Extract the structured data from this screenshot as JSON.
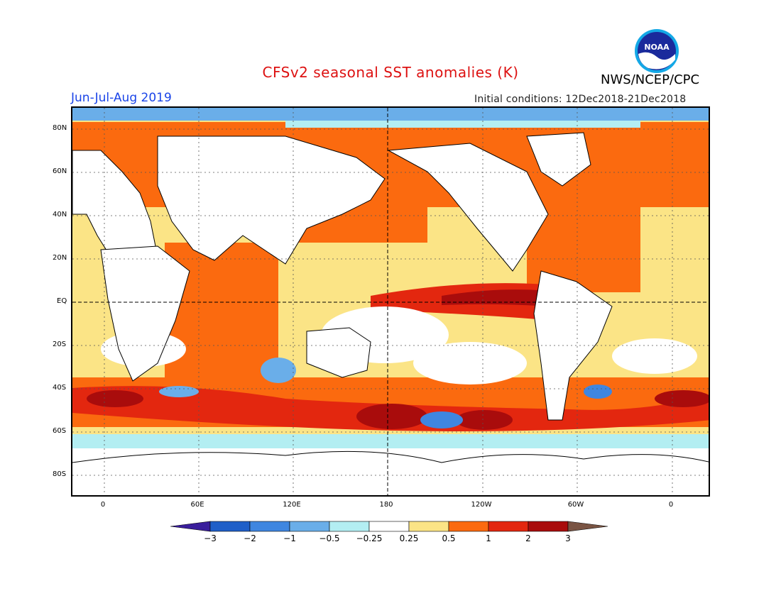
{
  "header": {
    "title": "CFSv2 seasonal SST anomalies (K)",
    "title_color": "#dd1111",
    "agency": "NWS/NCEP/CPC",
    "season": "Jun-Jul-Aug 2019",
    "season_color": "#1a44e8",
    "initial_conditions": "Initial conditions: 12Dec2018-21Dec2018",
    "logo_text": "NOAA"
  },
  "axes": {
    "lat_labels": [
      "80N",
      "60N",
      "40N",
      "20N",
      "EQ",
      "20S",
      "40S",
      "60S",
      "80S"
    ],
    "lon_labels": [
      "0",
      "60E",
      "120E",
      "180",
      "120W",
      "60W",
      "0"
    ]
  },
  "colorbar": {
    "levels": [
      "-3",
      "-2",
      "-1",
      "-0.5",
      "-0.25",
      "0.25",
      "0.5",
      "1",
      "2",
      "3"
    ],
    "colors": [
      "#3a1e9c",
      "#1f5fc8",
      "#3f86e0",
      "#6aaee9",
      "#b3eef2",
      "#ffffff",
      "#fbe486",
      "#fb6a0f",
      "#e3270f",
      "#a90c0c",
      "#7a5443"
    ]
  },
  "map": {
    "description_colors": {
      "land": "#ffffff",
      "coast": "#000000"
    }
  }
}
